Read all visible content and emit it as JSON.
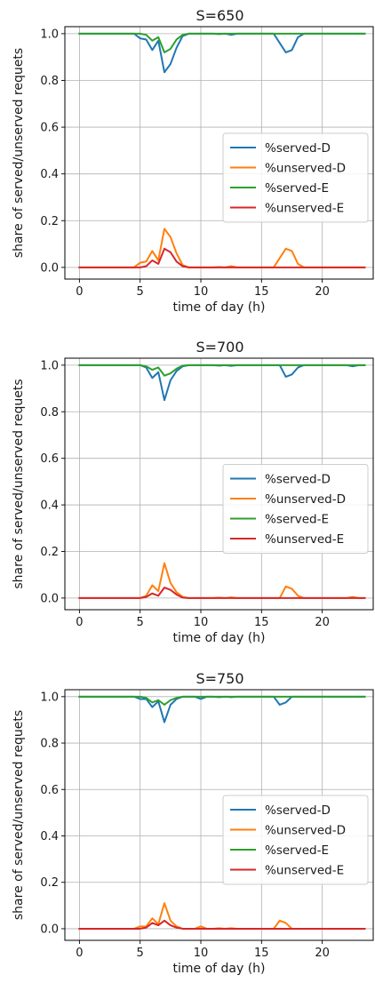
{
  "chart_data": [
    {
      "type": "line",
      "title": "S=650",
      "xlabel": "time of day (h)",
      "ylabel": "share of served/unserved requets",
      "xlim": [
        -1.2,
        24.2
      ],
      "ylim": [
        -0.05,
        1.03
      ],
      "xticks": [
        0,
        5,
        10,
        15,
        20
      ],
      "yticks": [
        0.0,
        0.2,
        0.4,
        0.6,
        0.8,
        1.0
      ],
      "grid": true,
      "legend_position": "center-right",
      "x": [
        0,
        0.5,
        1,
        1.5,
        2,
        2.5,
        3,
        3.5,
        4,
        4.5,
        5,
        5.5,
        6,
        6.5,
        7,
        7.5,
        8,
        8.5,
        9,
        9.5,
        10,
        10.5,
        11,
        11.5,
        12,
        12.5,
        13,
        13.5,
        14,
        14.5,
        15,
        15.5,
        16,
        16.5,
        17,
        17.5,
        18,
        18.5,
        19,
        19.5,
        20,
        20.5,
        21,
        21.5,
        22,
        22.5,
        23,
        23.5
      ],
      "series": [
        {
          "name": "%served-D",
          "color": "#1f77b4",
          "values": [
            1,
            1,
            1,
            1,
            1,
            1,
            1,
            1,
            1,
            1,
            0.98,
            0.975,
            0.93,
            0.97,
            0.835,
            0.87,
            0.94,
            0.99,
            1,
            1,
            1,
            1,
            1,
            0.998,
            1,
            0.995,
            1,
            1,
            1,
            1,
            1,
            1,
            1,
            0.96,
            0.92,
            0.93,
            0.985,
            1,
            1,
            1,
            1,
            1,
            1,
            1,
            1,
            1,
            1,
            1
          ]
        },
        {
          "name": "%unserved-D",
          "color": "#ff7f0e",
          "values": [
            0,
            0,
            0,
            0,
            0,
            0,
            0,
            0,
            0,
            0,
            0.02,
            0.025,
            0.07,
            0.03,
            0.165,
            0.13,
            0.06,
            0.01,
            0,
            0,
            0,
            0,
            0,
            0.002,
            0,
            0.005,
            0,
            0,
            0,
            0,
            0,
            0,
            0,
            0.04,
            0.08,
            0.07,
            0.015,
            0,
            0,
            0,
            0,
            0,
            0,
            0,
            0,
            0,
            0,
            0
          ]
        },
        {
          "name": "%served-E",
          "color": "#2ca02c",
          "values": [
            1,
            1,
            1,
            1,
            1,
            1,
            1,
            1,
            1,
            1,
            1,
            0.995,
            0.97,
            0.985,
            0.92,
            0.935,
            0.975,
            0.995,
            1,
            1,
            1,
            1,
            1,
            1,
            1,
            1,
            1,
            1,
            1,
            1,
            1,
            1,
            1,
            1,
            1,
            1,
            1,
            1,
            1,
            1,
            1,
            1,
            1,
            1,
            1,
            1,
            1,
            1
          ]
        },
        {
          "name": "%unserved-E",
          "color": "#d62728",
          "values": [
            0,
            0,
            0,
            0,
            0,
            0,
            0,
            0,
            0,
            0,
            0,
            0.005,
            0.03,
            0.015,
            0.08,
            0.065,
            0.025,
            0.005,
            0,
            0,
            0,
            0,
            0,
            0,
            0,
            0,
            0,
            0,
            0,
            0,
            0,
            0,
            0,
            0,
            0,
            0,
            0,
            0,
            0,
            0,
            0,
            0,
            0,
            0,
            0,
            0,
            0,
            0
          ]
        }
      ]
    },
    {
      "type": "line",
      "title": "S=700",
      "xlabel": "time of day (h)",
      "ylabel": "share of served/unserved requets",
      "xlim": [
        -1.2,
        24.2
      ],
      "ylim": [
        -0.05,
        1.03
      ],
      "xticks": [
        0,
        5,
        10,
        15,
        20
      ],
      "yticks": [
        0.0,
        0.2,
        0.4,
        0.6,
        0.8,
        1.0
      ],
      "grid": true,
      "legend_position": "center-right",
      "x": [
        0,
        0.5,
        1,
        1.5,
        2,
        2.5,
        3,
        3.5,
        4,
        4.5,
        5,
        5.5,
        6,
        6.5,
        7,
        7.5,
        8,
        8.5,
        9,
        9.5,
        10,
        10.5,
        11,
        11.5,
        12,
        12.5,
        13,
        13.5,
        14,
        14.5,
        15,
        15.5,
        16,
        16.5,
        17,
        17.5,
        18,
        18.5,
        19,
        19.5,
        20,
        20.5,
        21,
        21.5,
        22,
        22.5,
        23,
        23.5
      ],
      "series": [
        {
          "name": "%served-D",
          "color": "#1f77b4",
          "values": [
            1,
            1,
            1,
            1,
            1,
            1,
            1,
            1,
            1,
            1,
            1,
            0.99,
            0.945,
            0.97,
            0.85,
            0.935,
            0.975,
            0.995,
            1,
            1,
            1,
            1,
            1,
            0.998,
            1,
            0.997,
            1,
            1,
            1,
            1,
            1,
            1,
            1,
            1,
            0.95,
            0.96,
            0.99,
            1,
            1,
            1,
            1,
            1,
            1,
            1,
            1,
            0.995,
            1,
            1
          ]
        },
        {
          "name": "%unserved-D",
          "color": "#ff7f0e",
          "values": [
            0,
            0,
            0,
            0,
            0,
            0,
            0,
            0,
            0,
            0,
            0,
            0.01,
            0.055,
            0.03,
            0.15,
            0.065,
            0.025,
            0.005,
            0,
            0,
            0,
            0,
            0,
            0.002,
            0,
            0.003,
            0,
            0,
            0,
            0,
            0,
            0,
            0,
            0,
            0.05,
            0.04,
            0.01,
            0,
            0,
            0,
            0,
            0,
            0,
            0,
            0,
            0.005,
            0,
            0
          ]
        },
        {
          "name": "%served-E",
          "color": "#2ca02c",
          "values": [
            1,
            1,
            1,
            1,
            1,
            1,
            1,
            1,
            1,
            1,
            1,
            0.995,
            0.98,
            0.99,
            0.955,
            0.965,
            0.985,
            0.998,
            1,
            1,
            1,
            1,
            1,
            1,
            1,
            1,
            1,
            1,
            1,
            1,
            1,
            1,
            1,
            1,
            1,
            1,
            1,
            1,
            1,
            1,
            1,
            1,
            1,
            1,
            1,
            1,
            1,
            1
          ]
        },
        {
          "name": "%unserved-E",
          "color": "#d62728",
          "values": [
            0,
            0,
            0,
            0,
            0,
            0,
            0,
            0,
            0,
            0,
            0,
            0.005,
            0.02,
            0.01,
            0.045,
            0.035,
            0.015,
            0.002,
            0,
            0,
            0,
            0,
            0,
            0,
            0,
            0,
            0,
            0,
            0,
            0,
            0,
            0,
            0,
            0,
            0,
            0,
            0,
            0,
            0,
            0,
            0,
            0,
            0,
            0,
            0,
            0,
            0,
            0
          ]
        }
      ]
    },
    {
      "type": "line",
      "title": "S=750",
      "xlabel": "time of day (h)",
      "ylabel": "share of served/unserved requets",
      "xlim": [
        -1.2,
        24.2
      ],
      "ylim": [
        -0.05,
        1.03
      ],
      "xticks": [
        0,
        5,
        10,
        15,
        20
      ],
      "yticks": [
        0.0,
        0.2,
        0.4,
        0.6,
        0.8,
        1.0
      ],
      "grid": true,
      "legend_position": "center-right",
      "x": [
        0,
        0.5,
        1,
        1.5,
        2,
        2.5,
        3,
        3.5,
        4,
        4.5,
        5,
        5.5,
        6,
        6.5,
        7,
        7.5,
        8,
        8.5,
        9,
        9.5,
        10,
        10.5,
        11,
        11.5,
        12,
        12.5,
        13,
        13.5,
        14,
        14.5,
        15,
        15.5,
        16,
        16.5,
        17,
        17.5,
        18,
        18.5,
        19,
        19.5,
        20,
        20.5,
        21,
        21.5,
        22,
        22.5,
        23,
        23.5
      ],
      "series": [
        {
          "name": "%served-D",
          "color": "#1f77b4",
          "values": [
            1,
            1,
            1,
            1,
            1,
            1,
            1,
            1,
            1,
            1,
            0.99,
            0.99,
            0.955,
            0.98,
            0.89,
            0.965,
            0.99,
            1,
            1,
            1,
            0.99,
            1,
            1,
            0.998,
            1,
            0.998,
            1,
            1,
            1,
            1,
            1,
            1,
            1,
            0.965,
            0.975,
            1,
            1,
            1,
            1,
            1,
            1,
            1,
            1,
            1,
            1,
            1,
            1,
            1
          ]
        },
        {
          "name": "%unserved-D",
          "color": "#ff7f0e",
          "values": [
            0,
            0,
            0,
            0,
            0,
            0,
            0,
            0,
            0,
            0,
            0.01,
            0.01,
            0.045,
            0.02,
            0.11,
            0.035,
            0.01,
            0,
            0,
            0,
            0.01,
            0,
            0,
            0.002,
            0,
            0.002,
            0,
            0,
            0,
            0,
            0,
            0,
            0,
            0.035,
            0.025,
            0,
            0,
            0,
            0,
            0,
            0,
            0,
            0,
            0,
            0,
            0,
            0,
            0
          ]
        },
        {
          "name": "%served-E",
          "color": "#2ca02c",
          "values": [
            1,
            1,
            1,
            1,
            1,
            1,
            1,
            1,
            1,
            1,
            1,
            0.995,
            0.975,
            0.985,
            0.965,
            0.985,
            0.995,
            1,
            1,
            1,
            1,
            1,
            1,
            1,
            1,
            1,
            1,
            1,
            1,
            1,
            1,
            1,
            1,
            1,
            1,
            1,
            1,
            1,
            1,
            1,
            1,
            1,
            1,
            1,
            1,
            1,
            1,
            1
          ]
        },
        {
          "name": "%unserved-E",
          "color": "#d62728",
          "values": [
            0,
            0,
            0,
            0,
            0,
            0,
            0,
            0,
            0,
            0,
            0,
            0.005,
            0.025,
            0.015,
            0.035,
            0.015,
            0.005,
            0,
            0,
            0,
            0,
            0,
            0,
            0,
            0,
            0,
            0,
            0,
            0,
            0,
            0,
            0,
            0,
            0,
            0,
            0,
            0,
            0,
            0,
            0,
            0,
            0,
            0,
            0,
            0,
            0,
            0,
            0
          ]
        }
      ]
    }
  ]
}
